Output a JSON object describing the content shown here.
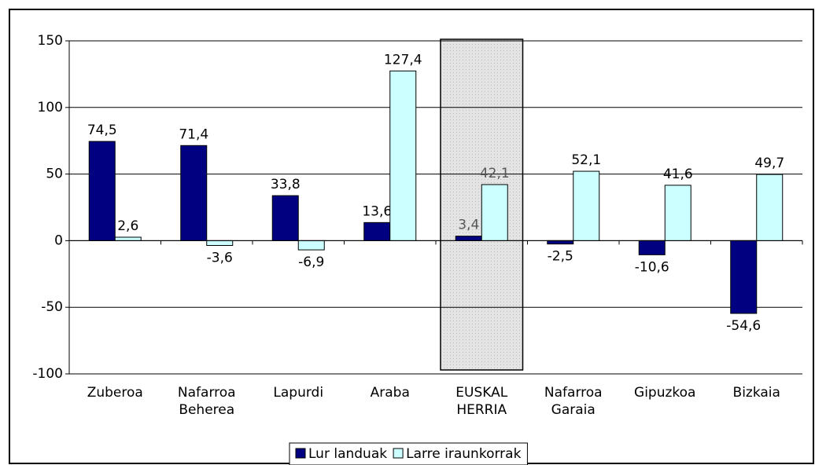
{
  "chart_data": {
    "type": "bar",
    "categories": [
      [
        "Zuberoa"
      ],
      [
        "Nafarroa",
        "Beherea"
      ],
      [
        "Lapurdi"
      ],
      [
        "Araba"
      ],
      [
        "EUSKAL",
        "HERRIA"
      ],
      [
        "Nafarroa",
        "Garaia"
      ],
      [
        "Gipuzkoa"
      ],
      [
        "Bizkaia"
      ]
    ],
    "series": [
      {
        "name": "Lur landuak",
        "color": "#000080",
        "values": [
          74.5,
          71.4,
          33.8,
          13.6,
          3.4,
          -2.5,
          -10.6,
          -54.6
        ],
        "value_labels": [
          "74,5",
          "71,4",
          "33,8",
          "13,6",
          "3,4",
          "-2,5",
          "-10,6",
          "-54,6"
        ]
      },
      {
        "name": "Larre iraunkorrak",
        "color": "#ccffff",
        "values": [
          2.6,
          -3.6,
          -6.9,
          127.4,
          42.1,
          52.1,
          41.6,
          49.7
        ],
        "value_labels": [
          "2,6",
          "-3,6",
          "-6,9",
          "127,4",
          "42,1",
          "52,1",
          "41,6",
          "49,7"
        ]
      }
    ],
    "ylim": [
      -100,
      150
    ],
    "yticks": [
      -100,
      -50,
      0,
      50,
      100,
      150
    ],
    "grid": true,
    "highlight_category": 4,
    "legend": "bottom"
  }
}
